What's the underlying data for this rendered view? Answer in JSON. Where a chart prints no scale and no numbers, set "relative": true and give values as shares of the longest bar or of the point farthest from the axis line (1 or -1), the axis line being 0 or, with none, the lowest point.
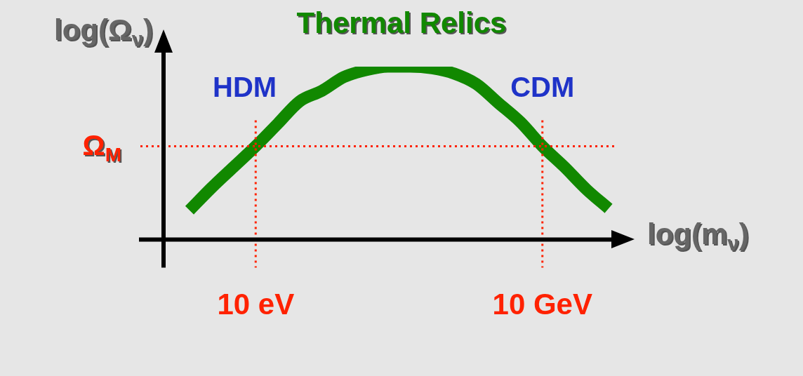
{
  "chart_data": {
    "type": "line",
    "title": "Thermal Relics",
    "xlabel": "log(m$_{ν}$)",
    "ylabel": "log(Ω$_{ν}$)",
    "relative": true,
    "marker": "none",
    "line_style": "solid",
    "categories": [
      null,
      null,
      null,
      "10 eV",
      null,
      null,
      null,
      null,
      null,
      null,
      null,
      null,
      null,
      null,
      null,
      null,
      "10 GeV",
      null,
      null,
      null
    ],
    "series": [
      {
        "color": "#118800",
        "values": [
          0.17,
          0.3,
          0.42,
          0.54,
          0.67,
          0.8,
          0.86,
          0.94,
          0.98,
          1.0,
          1.0,
          0.99,
          0.96,
          0.9,
          0.79,
          0.68,
          0.54,
          0.42,
          0.29,
          0.18
        ]
      }
    ],
    "ref_lines": [
      {
        "axis": "y",
        "value": 0.54,
        "label": "Ω$_{M}$",
        "color": "#ff2200",
        "line_style": "dotted"
      },
      {
        "axis": "x",
        "value": "10 eV",
        "color": "#ff2200",
        "line_style": "dotted"
      },
      {
        "axis": "x",
        "value": "10 GeV",
        "color": "#ff2200",
        "line_style": "dotted"
      }
    ],
    "annotations": [
      "HDM",
      "CDM"
    ]
  }
}
